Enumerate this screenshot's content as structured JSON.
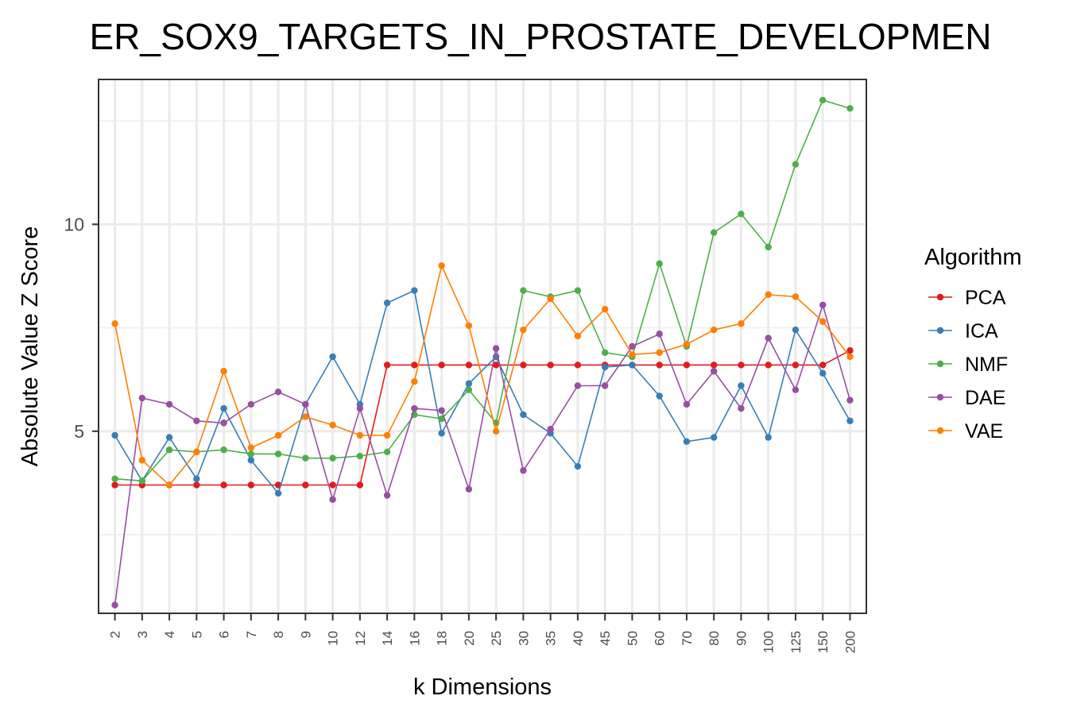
{
  "chart_data": {
    "type": "line",
    "title": "ER_SOX9_TARGETS_IN_PROSTATE_DEVELOPMEN",
    "xlabel": "k Dimensions",
    "ylabel": "Absolute Value Z Score",
    "categories": [
      "2",
      "3",
      "4",
      "5",
      "6",
      "7",
      "8",
      "9",
      "10",
      "12",
      "14",
      "16",
      "18",
      "20",
      "25",
      "30",
      "35",
      "40",
      "45",
      "50",
      "60",
      "70",
      "80",
      "90",
      "100",
      "125",
      "150",
      "200"
    ],
    "y_ticks": [
      5,
      10
    ],
    "ylim": [
      0.6,
      13.5
    ],
    "grid": true,
    "legend": {
      "title": "Algorithm",
      "position": "right"
    },
    "series": [
      {
        "name": "PCA",
        "color": "#e41a1c",
        "values": [
          3.7,
          3.7,
          3.7,
          3.7,
          3.7,
          3.7,
          3.7,
          3.7,
          3.7,
          3.7,
          6.6,
          6.6,
          6.6,
          6.6,
          6.6,
          6.6,
          6.6,
          6.6,
          6.6,
          6.6,
          6.6,
          6.6,
          6.6,
          6.6,
          6.6,
          6.6,
          6.6,
          6.95
        ]
      },
      {
        "name": "ICA",
        "color": "#377eb8",
        "values": [
          4.9,
          3.8,
          4.85,
          3.85,
          5.55,
          4.3,
          3.5,
          5.65,
          6.8,
          5.65,
          8.1,
          8.4,
          4.95,
          6.15,
          6.8,
          5.4,
          4.95,
          4.15,
          6.55,
          6.6,
          5.85,
          4.75,
          4.85,
          6.1,
          4.85,
          7.45,
          6.4,
          5.25
        ]
      },
      {
        "name": "NMF",
        "color": "#4daf4a",
        "values": [
          3.85,
          3.8,
          4.55,
          4.5,
          4.55,
          4.45,
          4.45,
          4.35,
          4.35,
          4.4,
          4.5,
          5.4,
          5.3,
          6.0,
          5.2,
          8.4,
          8.25,
          8.4,
          6.9,
          6.8,
          9.05,
          7.05,
          9.8,
          10.25,
          9.45,
          11.45,
          13.0,
          12.8
        ]
      },
      {
        "name": "DAE",
        "color": "#984ea3",
        "values": [
          0.8,
          5.8,
          5.65,
          5.25,
          5.2,
          5.65,
          5.95,
          5.65,
          3.35,
          5.55,
          3.45,
          5.55,
          5.5,
          3.6,
          7.0,
          4.05,
          5.05,
          6.1,
          6.1,
          7.05,
          7.35,
          5.65,
          6.45,
          5.55,
          7.25,
          6.0,
          8.05,
          5.75
        ]
      },
      {
        "name": "VAE",
        "color": "#ff7f00",
        "values": [
          7.6,
          4.3,
          3.7,
          4.5,
          6.45,
          4.6,
          4.9,
          5.35,
          5.15,
          4.9,
          4.9,
          6.2,
          9.0,
          7.55,
          5.0,
          7.45,
          8.2,
          7.3,
          7.95,
          6.85,
          6.9,
          7.1,
          7.45,
          7.6,
          8.3,
          8.25,
          7.65,
          6.8
        ]
      }
    ]
  }
}
